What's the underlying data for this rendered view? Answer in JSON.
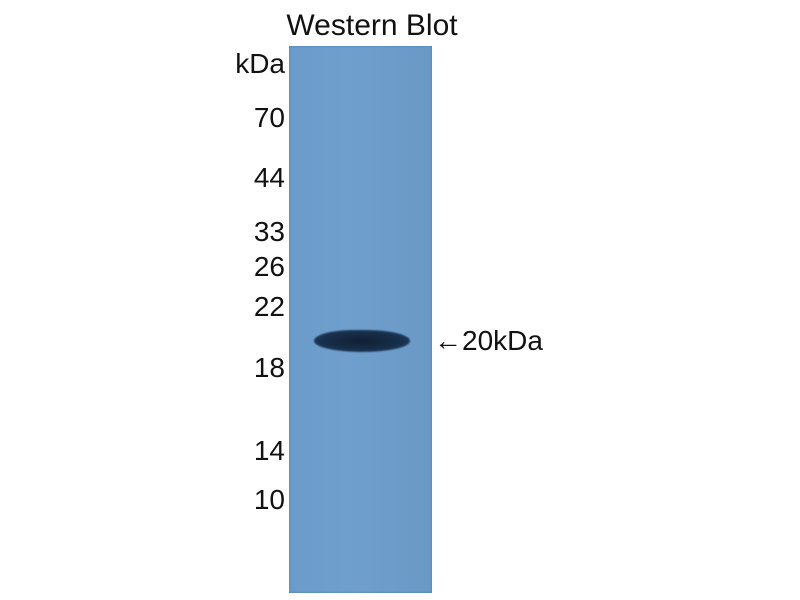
{
  "title": "Western Blot",
  "unit_label": "kDa",
  "markers": [
    "70",
    "44",
    "33",
    "26",
    "22",
    "18",
    "14",
    "10"
  ],
  "band_annotation": "←20kDa",
  "colors": {
    "membrane": "#6b9bc9",
    "band": "#18304c"
  }
}
